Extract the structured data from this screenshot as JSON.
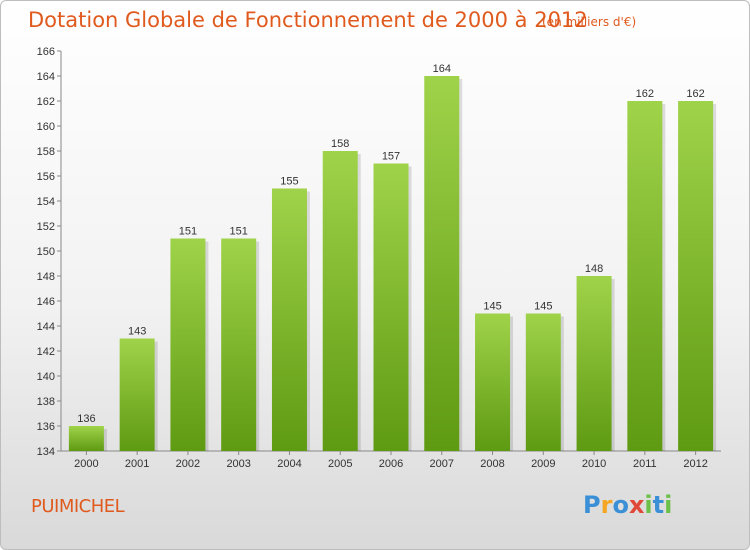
{
  "header": {
    "title": "Dotation Globale de Fonctionnement de 2000 à 2012",
    "subtitle": "(en milliers d'€)"
  },
  "footer": {
    "city": "PUIMICHEL",
    "brand": "Proxiti",
    "brand_colors": [
      "#3b8fd6",
      "#f5a623",
      "#3b8fd6",
      "#e0483a",
      "#6cc04a",
      "#3b8fd6",
      "#6cc04a"
    ]
  },
  "colors": {
    "bar_light": "#9fd34a",
    "bar_dark": "#5e9a12",
    "title": "#e05a1e"
  },
  "chart_data": {
    "type": "bar",
    "title": "Dotation Globale de Fonctionnement de 2000 à 2012",
    "subtitle": "(en milliers d'€)",
    "categories": [
      "2000",
      "2001",
      "2002",
      "2003",
      "2004",
      "2005",
      "2006",
      "2007",
      "2008",
      "2009",
      "2010",
      "2011",
      "2012"
    ],
    "values": [
      136,
      143,
      151,
      151,
      155,
      158,
      157,
      164,
      145,
      145,
      148,
      162,
      162
    ],
    "ylim": [
      134,
      166
    ],
    "yticks": [
      134,
      136,
      138,
      140,
      142,
      144,
      146,
      148,
      150,
      152,
      154,
      156,
      158,
      160,
      162,
      164,
      166
    ],
    "grid": false,
    "legend": "none"
  }
}
